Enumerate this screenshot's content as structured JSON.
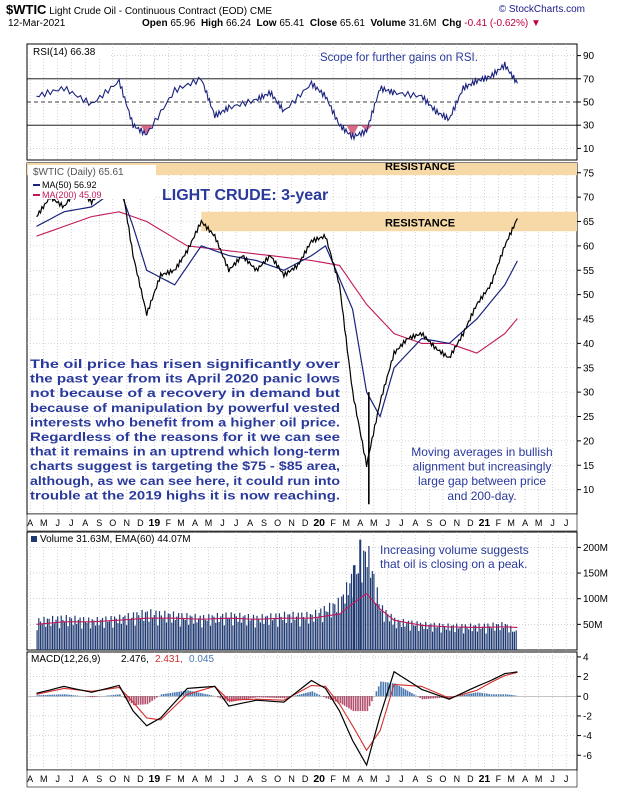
{
  "header": {
    "symbol": "$WTIC",
    "title": "Light Crude Oil - Continuous Contract (EOD)",
    "exchange": "CME",
    "date": "12-Mar-2021",
    "brand": "© StockCharts.com",
    "open_label": "Open",
    "open": "65.96",
    "high_label": "High",
    "high": "66.24",
    "low_label": "Low",
    "low": "65.41",
    "close_label": "Close",
    "close": "65.61",
    "volume_label": "Volume",
    "volume": "31.6M",
    "chg_label": "Chg",
    "chg": "-0.41 (-0.62%)",
    "chg_arrow": "▼"
  },
  "colors": {
    "price": "#000000",
    "ma50": "#1a237e",
    "ma200": "#c2185b",
    "resistance": "#f7d9a8",
    "volume": "#1f3a73",
    "rsi_fill": "#d86a8c",
    "annotation": "#2a3a9c",
    "grid": "#b8b8b8"
  },
  "rsi_panel": {
    "legend": "RSI(14) 66.38",
    "annotation": "Scope for further gains on RSI."
  },
  "price_panel": {
    "legend": "$WTIC (Daily) 65.61",
    "ma50_legend": "MA(50) 56.92",
    "ma200_legend": "MA(200) 45.09",
    "title": "LIGHT CRUDE: 3-year",
    "resistance_top": "RESISTANCE",
    "resistance_mid": "RESISTANCE",
    "annotation_left": [
      "The oil price has risen significantly over",
      "the past year from its April 2020 panic lows",
      "not because of a recovery in demand but",
      "because of manipulation by powerful vested",
      "interests who benefit from a higher oil price.",
      "Regardless of the reasons for it we can see",
      "that it remains in an uptrend which long-term",
      "charts suggest is targeting the $75 - $85 area,",
      "although, as we can see here, it could run into",
      "trouble at the 2019 highs it is now reaching."
    ],
    "annotation_right": [
      "Moving averages in bullish",
      "alignment but increasingly",
      "large gap between price",
      "and 200-day."
    ]
  },
  "volume_panel": {
    "legend": "Volume 31.63M, EMA(60) 44.07M",
    "annotation": [
      "Increasing volume suggests",
      "that oil is closing on a peak."
    ]
  },
  "macd_panel": {
    "legend_a": "MACD(12,26,9)",
    "value_macd": "2.476,",
    "value_signal": "2.431,",
    "value_hist": "0.045"
  },
  "chart_data": [
    {
      "type": "line",
      "panel": "RSI",
      "series": [
        {
          "name": "RSI(14)",
          "x": [
            "2018-04",
            "2018-06",
            "2018-08",
            "2018-10",
            "2018-11",
            "2018-12",
            "2019-02",
            "2019-04",
            "2019-05",
            "2019-06",
            "2019-08",
            "2019-09",
            "2019-10",
            "2019-12",
            "2020-01",
            "2020-02",
            "2020-03",
            "2020-04",
            "2020-05",
            "2020-06",
            "2020-08",
            "2020-09",
            "2020-10",
            "2020-11",
            "2020-12",
            "2021-01",
            "2021-02",
            "2021-03"
          ],
          "values": [
            55,
            62,
            48,
            68,
            30,
            22,
            60,
            70,
            38,
            45,
            52,
            58,
            42,
            66,
            55,
            30,
            20,
            25,
            62,
            58,
            55,
            42,
            35,
            62,
            68,
            72,
            82,
            66
          ]
        }
      ],
      "ylim": [
        0,
        100
      ],
      "y_ticks": [
        "90",
        "70",
        "50",
        "30",
        "10"
      ],
      "levels": [
        70,
        50,
        30
      ]
    },
    {
      "type": "line",
      "panel": "Price",
      "x_ticks": [
        "A",
        "M",
        "J",
        "J",
        "A",
        "S",
        "O",
        "N",
        "D",
        "19",
        "F",
        "M",
        "A",
        "M",
        "J",
        "J",
        "A",
        "S",
        "O",
        "N",
        "D",
        "20",
        "F",
        "M",
        "A",
        "M",
        "J",
        "J",
        "A",
        "S",
        "O",
        "N",
        "D",
        "21",
        "F",
        "M",
        "A",
        "M",
        "J",
        "J"
      ],
      "y_ticks": [
        "75",
        "70",
        "65",
        "60",
        "55",
        "50",
        "45",
        "40",
        "35",
        "30",
        "25",
        "20",
        "15",
        "10"
      ],
      "ylim": [
        5,
        77
      ],
      "resistance_bands": [
        [
          74.5,
          77
        ],
        [
          63,
          67
        ]
      ],
      "series": [
        {
          "name": "$WTIC",
          "x": [
            "2018-04",
            "2018-05",
            "2018-06",
            "2018-07",
            "2018-08",
            "2018-09",
            "2018-10",
            "2018-11",
            "2018-12",
            "2019-01",
            "2019-02",
            "2019-03",
            "2019-04",
            "2019-05",
            "2019-06",
            "2019-07",
            "2019-08",
            "2019-09",
            "2019-10",
            "2019-11",
            "2019-12",
            "2020-01",
            "2020-02",
            "2020-03",
            "2020-04",
            "2020-05",
            "2020-06",
            "2020-07",
            "2020-08",
            "2020-09",
            "2020-10",
            "2020-11",
            "2020-12",
            "2021-01",
            "2021-02",
            "2021-03"
          ],
          "values": [
            66,
            70,
            68,
            72,
            69,
            72,
            76,
            58,
            46,
            54,
            55,
            59,
            65,
            62,
            55,
            58,
            55,
            58,
            54,
            56,
            61,
            62,
            52,
            30,
            15,
            28,
            38,
            41,
            42,
            39,
            37,
            42,
            48,
            52,
            60,
            65.61
          ]
        },
        {
          "name": "MA(50)",
          "x": [
            "2018-04",
            "2018-06",
            "2018-08",
            "2018-10",
            "2018-11",
            "2018-12",
            "2019-02",
            "2019-04",
            "2019-06",
            "2019-08",
            "2019-10",
            "2019-12",
            "2020-01",
            "2020-03",
            "2020-04",
            "2020-05",
            "2020-06",
            "2020-08",
            "2020-10",
            "2020-12",
            "2021-02",
            "2021-03"
          ],
          "values": [
            64,
            67,
            68,
            72,
            64,
            55,
            52,
            60,
            58,
            57,
            55,
            58,
            60,
            47,
            30,
            25,
            35,
            41,
            40,
            45,
            52,
            56.92
          ]
        },
        {
          "name": "MA(200)",
          "x": [
            "2018-04",
            "2018-08",
            "2018-10",
            "2018-12",
            "2019-03",
            "2019-06",
            "2019-09",
            "2019-12",
            "2020-02",
            "2020-04",
            "2020-06",
            "2020-08",
            "2020-10",
            "2020-12",
            "2021-02",
            "2021-03"
          ],
          "values": [
            62,
            66,
            67,
            65,
            60,
            59,
            58,
            57,
            56,
            48,
            42,
            40,
            40,
            38,
            42,
            45.09
          ]
        }
      ]
    },
    {
      "type": "bar",
      "panel": "Volume",
      "y_ticks": [
        "200M",
        "150M",
        "100M",
        "50M"
      ],
      "ylim": [
        0,
        230
      ],
      "x": [
        "2018-04",
        "2018-06",
        "2018-08",
        "2018-10",
        "2018-12",
        "2019-02",
        "2019-04",
        "2019-06",
        "2019-08",
        "2019-10",
        "2019-12",
        "2020-02",
        "2020-03",
        "2020-04",
        "2020-05",
        "2020-06",
        "2020-08",
        "2020-10",
        "2020-12",
        "2021-02",
        "2021-03"
      ],
      "values": [
        55,
        60,
        55,
        60,
        70,
        65,
        60,
        65,
        60,
        65,
        65,
        90,
        140,
        190,
        80,
        55,
        48,
        45,
        45,
        48,
        31.63
      ],
      "ema": {
        "name": "EMA(60)",
        "values": [
          50,
          55,
          55,
          58,
          62,
          62,
          60,
          62,
          60,
          62,
          62,
          70,
          90,
          110,
          80,
          58,
          48,
          45,
          44,
          45,
          44.07
        ]
      }
    },
    {
      "type": "line",
      "panel": "MACD",
      "y_ticks": [
        "4",
        "2",
        "0",
        "-2",
        "-4",
        "-6"
      ],
      "ylim": [
        -7.5,
        4.5
      ],
      "x": [
        "2018-04",
        "2018-06",
        "2018-08",
        "2018-10",
        "2018-11",
        "2018-12",
        "2019-01",
        "2019-03",
        "2019-05",
        "2019-06",
        "2019-08",
        "2019-10",
        "2019-12",
        "2020-01",
        "2020-02",
        "2020-03",
        "2020-04",
        "2020-05",
        "2020-06",
        "2020-08",
        "2020-10",
        "2020-12",
        "2021-01",
        "2021-02",
        "2021-03"
      ],
      "series": [
        {
          "name": "MACD",
          "values": [
            0.3,
            1.0,
            0.4,
            1.1,
            -1.5,
            -3.0,
            -2.2,
            0.8,
            1.0,
            -1.0,
            -0.4,
            -0.6,
            1.6,
            0.8,
            -1.5,
            -4.5,
            -7.0,
            -2.0,
            2.5,
            0.7,
            -0.3,
            1.0,
            1.6,
            2.3,
            2.476
          ]
        },
        {
          "name": "Signal",
          "values": [
            0.2,
            0.8,
            0.5,
            0.9,
            -0.6,
            -2.2,
            -2.4,
            0.2,
            1.0,
            -0.4,
            -0.3,
            -0.4,
            1.1,
            1.0,
            -0.8,
            -3.0,
            -5.5,
            -3.5,
            1.2,
            1.0,
            -0.2,
            0.6,
            1.4,
            2.1,
            2.431
          ]
        }
      ],
      "histogram": [
        0.1,
        0.2,
        -0.1,
        0.2,
        -0.9,
        -0.8,
        0.2,
        0.6,
        0.0,
        -0.6,
        -0.1,
        -0.2,
        0.5,
        -0.2,
        -0.7,
        -1.5,
        -1.5,
        1.5,
        1.3,
        -0.3,
        -0.1,
        0.4,
        0.2,
        0.2,
        0.045
      ]
    }
  ]
}
